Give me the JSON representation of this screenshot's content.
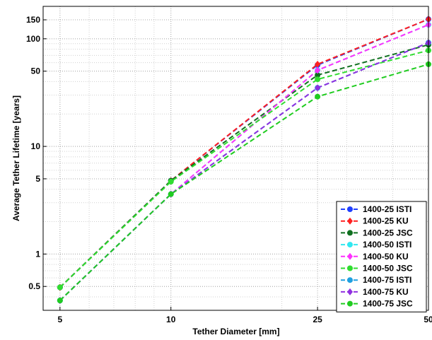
{
  "chart_data": {
    "type": "line",
    "title": "",
    "xlabel": "Tether Diameter [mm]",
    "ylabel": "Average Tether Lifetime [years]",
    "xscale": "log",
    "yscale": "log",
    "x": [
      5,
      10,
      25,
      50
    ],
    "xlim": [
      4.5,
      50
    ],
    "ylim": [
      0.3,
      200
    ],
    "xticks": [
      5,
      10,
      25,
      50
    ],
    "xtick_labels": [
      "5",
      "10",
      "25",
      "50"
    ],
    "yticks": [
      0.5,
      1,
      5,
      10,
      50,
      100,
      150
    ],
    "ytick_labels": [
      "0.5",
      "1",
      "5",
      "10",
      "50",
      "100",
      "150"
    ],
    "grid": true,
    "legend_position": "bottom-right",
    "line_style": "dashed",
    "series": [
      {
        "name": "1400-25  ISTI",
        "color": "#1f3fff",
        "values": [
          0.49,
          4.8,
          57,
          152
        ]
      },
      {
        "name": "1400-25  KU",
        "color": "#ff2020",
        "values": [
          0.49,
          4.8,
          58,
          152
        ]
      },
      {
        "name": "1400-25  JSC",
        "color": "#107020",
        "values": [
          0.49,
          4.8,
          46,
          88
        ]
      },
      {
        "name": "1400-50  ISTI",
        "color": "#30e8f0",
        "values": [
          0.37,
          3.6,
          51,
          135
        ]
      },
      {
        "name": "1400-50  KU",
        "color": "#ff30ff",
        "values": [
          0.37,
          3.6,
          51,
          135
        ]
      },
      {
        "name": "1400-50  JSC",
        "color": "#30dd30",
        "values": [
          0.49,
          4.7,
          42,
          78
        ]
      },
      {
        "name": "1400-75  ISTI",
        "color": "#20a0e0",
        "values": [
          0.37,
          3.6,
          35,
          92
        ]
      },
      {
        "name": "1400-75  KU",
        "color": "#9030e0",
        "values": [
          0.37,
          3.6,
          35,
          92
        ]
      },
      {
        "name": "1400-75  JSC",
        "color": "#20cc20",
        "values": [
          0.37,
          3.6,
          29,
          58
        ]
      }
    ]
  }
}
